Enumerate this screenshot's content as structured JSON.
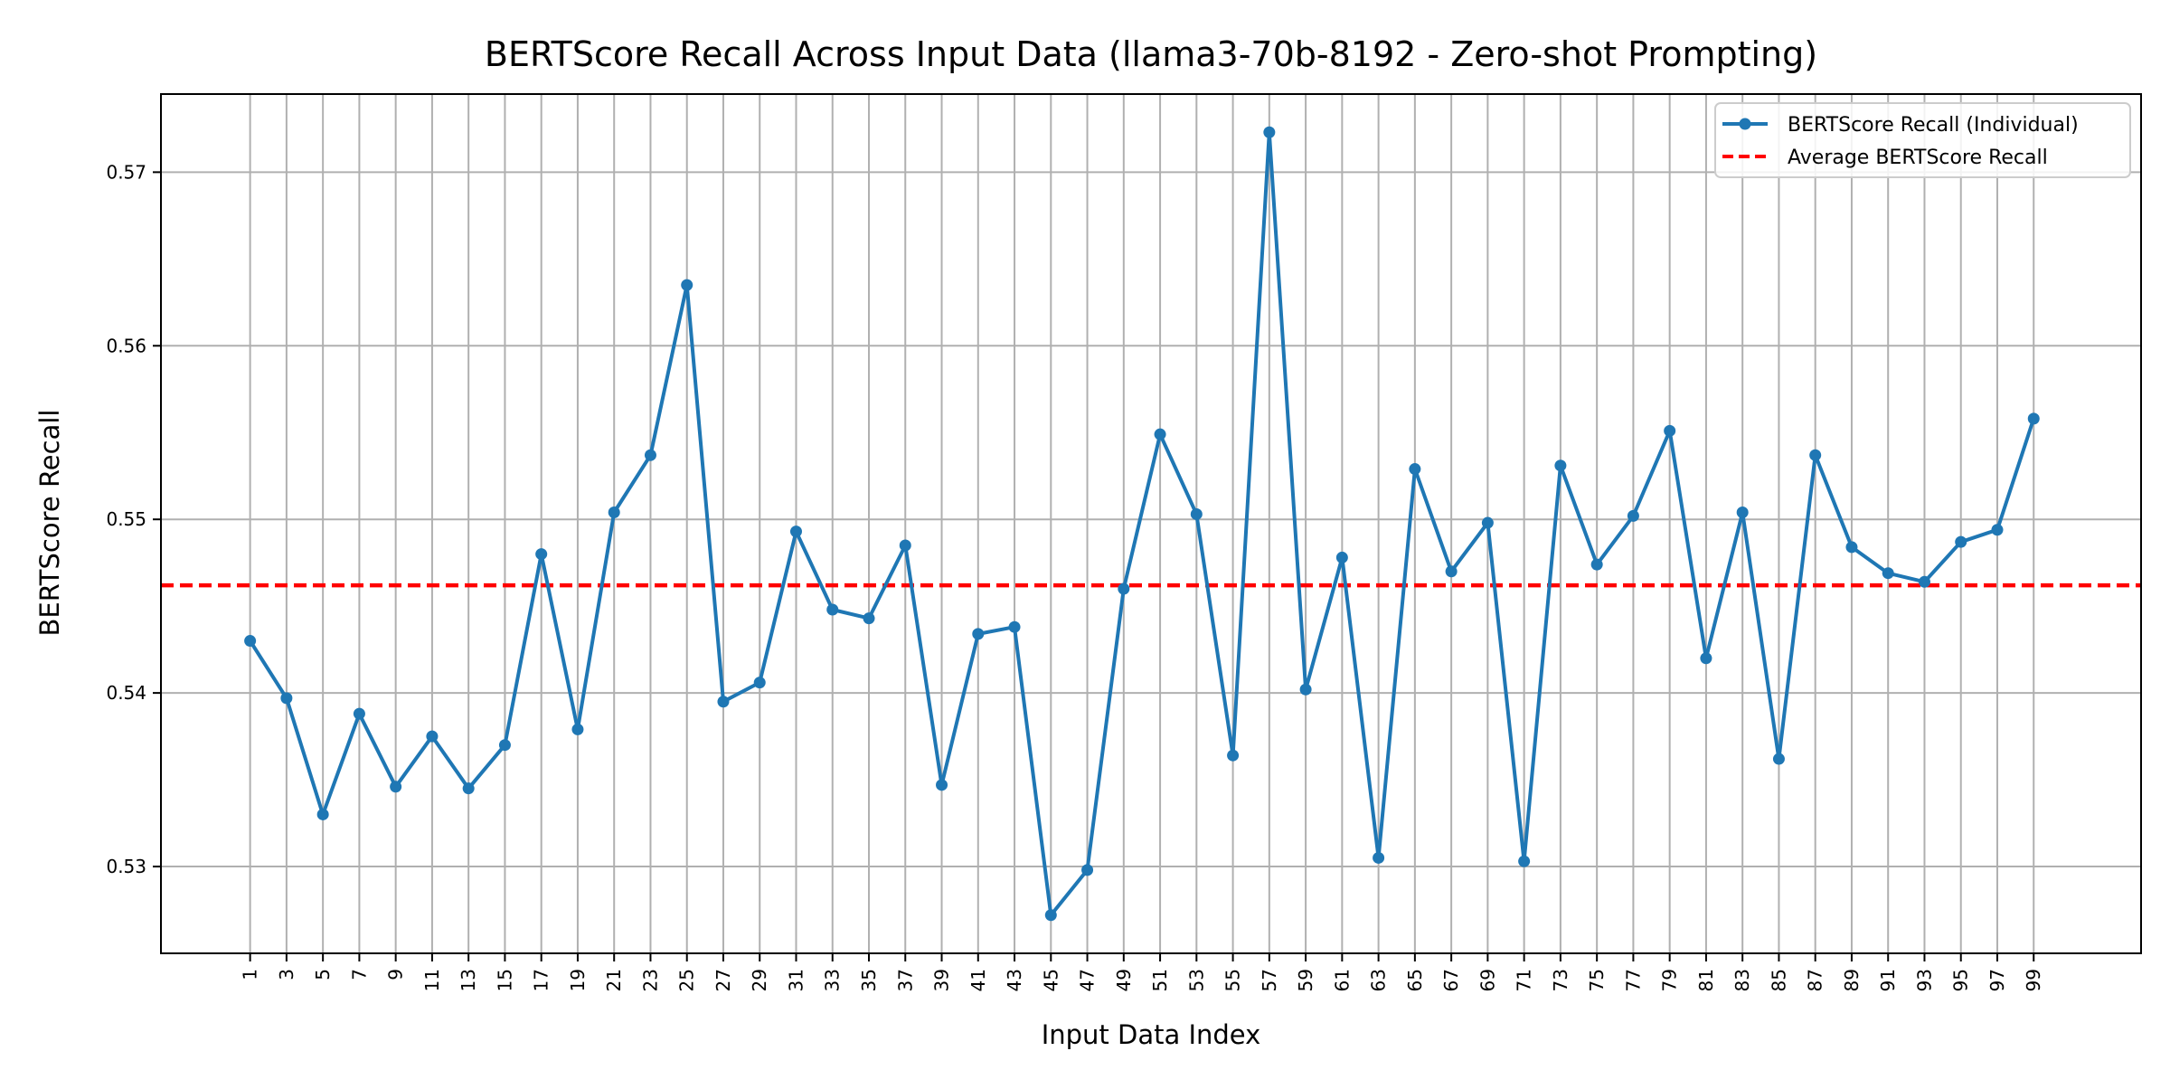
{
  "chart_data": {
    "type": "line",
    "title": "BERTScore Recall Across Input Data (llama3-70b-8192 - Zero-shot Prompting)",
    "xlabel": "Input Data Index",
    "ylabel": "BERTScore Recall",
    "x": [
      1,
      3,
      5,
      7,
      9,
      11,
      13,
      15,
      17,
      19,
      21,
      23,
      25,
      27,
      29,
      31,
      33,
      35,
      37,
      39,
      41,
      43,
      45,
      47,
      49,
      51,
      53,
      55,
      57,
      59,
      61,
      63,
      65,
      67,
      69,
      71,
      73,
      75,
      77,
      79,
      81,
      83,
      85,
      87,
      89,
      91,
      93,
      95,
      97,
      99
    ],
    "xticks": [
      "1",
      "3",
      "5",
      "7",
      "9",
      "11",
      "13",
      "15",
      "17",
      "19",
      "21",
      "23",
      "25",
      "27",
      "29",
      "31",
      "33",
      "35",
      "37",
      "39",
      "41",
      "43",
      "45",
      "47",
      "49",
      "51",
      "53",
      "55",
      "57",
      "59",
      "61",
      "63",
      "65",
      "67",
      "69",
      "71",
      "73",
      "75",
      "77",
      "79",
      "81",
      "83",
      "85",
      "87",
      "89",
      "91",
      "93",
      "95",
      "97",
      "99"
    ],
    "xlim": [
      -3.9,
      104.9
    ],
    "ylim": [
      0.525,
      0.5745
    ],
    "yticks": [
      "0.53",
      "0.54",
      "0.55",
      "0.56",
      "0.57"
    ],
    "ytick_values": [
      0.53,
      0.54,
      0.55,
      0.56,
      0.57
    ],
    "grid": true,
    "legend_position": "top-right",
    "series": [
      {
        "name": "BERTScore Recall (Individual)",
        "style": "line-with-markers",
        "color": "#1f77b4",
        "values": [
          0.543,
          0.5397,
          0.533,
          0.5388,
          0.5346,
          0.5375,
          0.5345,
          0.537,
          0.548,
          0.5379,
          0.5504,
          0.5537,
          0.5635,
          0.5395,
          0.5406,
          0.5493,
          0.5448,
          0.5443,
          0.5485,
          0.5347,
          0.5434,
          0.5438,
          0.5272,
          0.5298,
          0.546,
          0.5549,
          0.5503,
          0.5364,
          0.5723,
          0.5402,
          0.5478,
          0.5305,
          0.5529,
          0.547,
          0.5498,
          0.5303,
          0.5531,
          0.5474,
          0.5502,
          0.5551,
          0.542,
          0.5504,
          0.5362,
          0.5537,
          0.5484,
          0.5469,
          0.5464,
          0.5487,
          0.5494,
          0.5558
        ]
      },
      {
        "name": "Average BERTScore Recall",
        "style": "dashed-horizontal",
        "color": "#ff0000",
        "value": 0.5462
      }
    ]
  }
}
